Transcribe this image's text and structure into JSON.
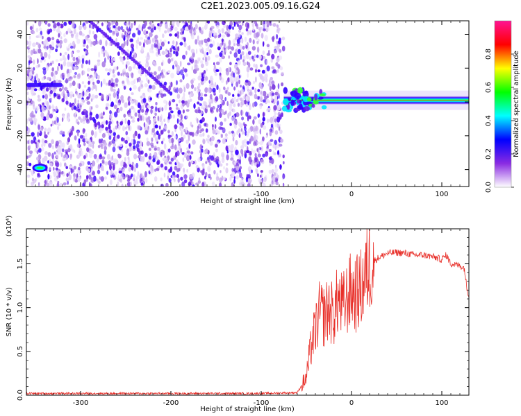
{
  "title": "C2E1.2023.005.09.16.G24",
  "chart_data": [
    {
      "type": "heatmap",
      "xlabel": "Height of straight line (km)",
      "ylabel": "Frequency (Hz)",
      "xlim": [
        -360,
        130
      ],
      "ylim": [
        -50,
        48
      ],
      "xticks": [
        -300,
        -200,
        -100,
        0,
        100
      ],
      "yticks": [
        -40,
        -20,
        0,
        20,
        40
      ],
      "colorbar": {
        "label": "Normalized spectral amplitude",
        "range": [
          0.0,
          1.0
        ],
        "ticks": [
          "0.0",
          "0.2",
          "0.4",
          "0.6",
          "0.8"
        ],
        "colormap": [
          "#ffffff",
          "#8a2be2",
          "#0000ff",
          "#00ffff",
          "#00ff00",
          "#ffff00",
          "#ff0000",
          "#ff1493"
        ]
      },
      "features": {
        "noise_region_x": [
          -360,
          -75
        ],
        "signal_line": {
          "x": [
            -75,
            130
          ],
          "frequency_hz": 1,
          "peak_amplitude": 0.9
        },
        "low_freq_tone": {
          "x": [
            -360,
            -320
          ],
          "frequency_hz": 10
        },
        "blob": {
          "x": -345,
          "frequency_hz": -39
        },
        "diagonal_tracks": [
          {
            "x": [
              -350,
              -175
            ],
            "y": [
              12,
              -50
            ]
          },
          {
            "x": [
              -290,
              -200
            ],
            "y": [
              48,
              5
            ]
          }
        ]
      }
    },
    {
      "type": "line",
      "xlabel": "Height of straight line (km)",
      "ylabel": "SNR (10 * v/v)",
      "y_multiplier": "(x10⁴)",
      "xlim": [
        -360,
        130
      ],
      "ylim": [
        0.0,
        1.9
      ],
      "xticks": [
        -300,
        -200,
        -100,
        0,
        100
      ],
      "yticks": [
        "0.0",
        "0.5",
        "1.0",
        "1.5"
      ],
      "series": [
        {
          "color": "#e8302a",
          "x": [
            -360,
            -300,
            -200,
            -100,
            -60,
            -50,
            -45,
            -40,
            -35,
            -30,
            -25,
            -20,
            -15,
            -10,
            -5,
            0,
            5,
            10,
            15,
            20,
            30,
            40,
            50,
            60,
            70,
            80,
            90,
            100,
            105,
            110,
            120,
            125,
            128,
            130
          ],
          "y": [
            0.02,
            0.02,
            0.02,
            0.02,
            0.03,
            0.2,
            0.55,
            0.75,
            0.95,
            0.9,
            1.0,
            0.9,
            1.1,
            1.0,
            1.1,
            1.2,
            1.15,
            1.2,
            1.35,
            1.5,
            1.57,
            1.62,
            1.63,
            1.62,
            1.6,
            1.6,
            1.58,
            1.55,
            1.6,
            1.5,
            1.48,
            1.45,
            1.2,
            1.15
          ]
        }
      ]
    }
  ]
}
